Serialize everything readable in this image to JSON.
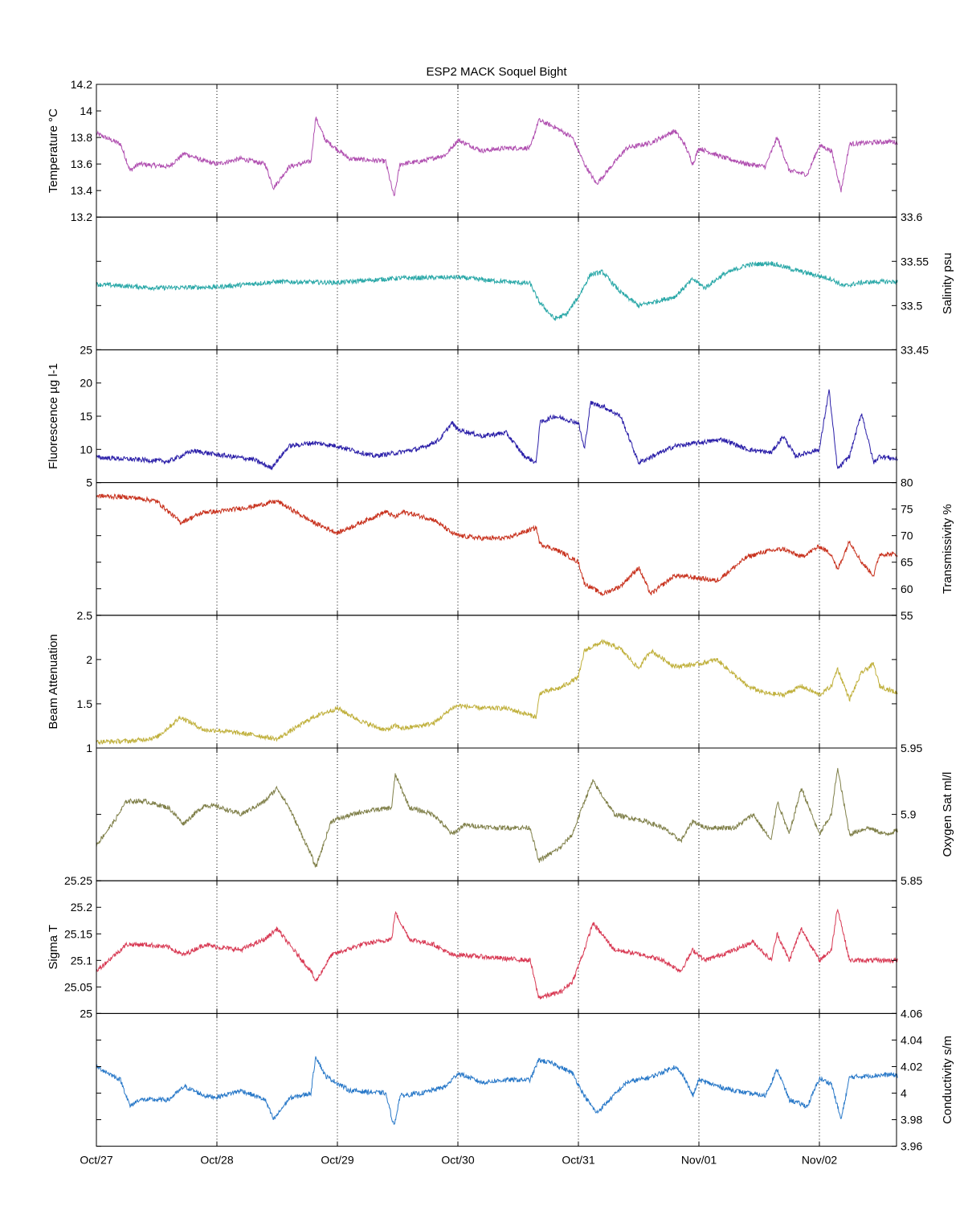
{
  "chart_data": {
    "type": "line",
    "title": "ESP2 MACK  Soquel Bight",
    "x_ticks": [
      "Oct/27",
      "Oct/28",
      "Oct/29",
      "Oct/30",
      "Oct/31",
      "Nov/01",
      "Nov/02"
    ],
    "x_range_days": [
      0,
      6.65
    ],
    "grid": "vertical dotted at day ticks",
    "panels": [
      {
        "name": "Temperature",
        "ylabel": "Temperature °C",
        "side": "left",
        "color": "#b04fb0",
        "ylim": [
          13.2,
          14.2
        ],
        "yticks": [
          13.4,
          13.6,
          13.8,
          14,
          14.2
        ],
        "ytick_labels": [
          "13.4",
          "13.6",
          "13.8",
          "14",
          "14.2"
        ],
        "bottom_label": "13.2",
        "x": [
          0,
          0.2,
          0.28,
          0.35,
          0.6,
          0.73,
          0.9,
          1.0,
          1.2,
          1.4,
          1.47,
          1.6,
          1.78,
          1.82,
          1.9,
          2.1,
          2.4,
          2.47,
          2.52,
          2.7,
          2.9,
          3.0,
          3.2,
          3.4,
          3.6,
          3.67,
          3.8,
          3.95,
          4.05,
          4.15,
          4.4,
          4.6,
          4.8,
          4.88,
          4.95,
          5.0,
          5.2,
          5.4,
          5.55,
          5.65,
          5.75,
          5.9,
          6.0,
          6.1,
          6.18,
          6.25,
          6.4,
          6.6,
          6.65
        ],
        "y": [
          13.83,
          13.75,
          13.55,
          13.6,
          13.58,
          13.68,
          13.62,
          13.6,
          13.64,
          13.6,
          13.42,
          13.58,
          13.62,
          13.95,
          13.78,
          13.64,
          13.62,
          13.35,
          13.6,
          13.62,
          13.67,
          13.78,
          13.7,
          13.72,
          13.72,
          13.93,
          13.88,
          13.8,
          13.6,
          13.45,
          13.72,
          13.76,
          13.85,
          13.75,
          13.6,
          13.72,
          13.65,
          13.6,
          13.58,
          13.8,
          13.55,
          13.52,
          13.74,
          13.7,
          13.4,
          13.75,
          13.76,
          13.77,
          13.76
        ]
      },
      {
        "name": "Salinity",
        "ylabel": "Salinity psu",
        "side": "right",
        "color": "#2aa8a8",
        "ylim": [
          33.45,
          33.6
        ],
        "yticks": [
          33.45,
          33.5,
          33.55,
          33.6
        ],
        "ytick_labels": [
          "33.45",
          "33.5",
          "33.55",
          "33.6"
        ],
        "x": [
          0,
          0.5,
          1.0,
          1.5,
          2.0,
          2.5,
          3.0,
          3.3,
          3.6,
          3.67,
          3.8,
          3.9,
          4.0,
          4.1,
          4.2,
          4.35,
          4.5,
          4.8,
          4.95,
          5.05,
          5.2,
          5.4,
          5.6,
          5.8,
          5.95,
          6.1,
          6.2,
          6.35,
          6.5,
          6.65
        ],
        "y": [
          33.524,
          33.52,
          33.521,
          33.527,
          33.526,
          33.531,
          33.532,
          33.528,
          33.525,
          33.505,
          33.485,
          33.49,
          33.51,
          33.535,
          33.538,
          33.515,
          33.5,
          33.51,
          33.53,
          33.52,
          33.535,
          33.546,
          33.548,
          33.54,
          33.535,
          33.53,
          33.522,
          33.526,
          33.527,
          33.527
        ]
      },
      {
        "name": "Fluorescence",
        "ylabel": "Fluorescence µg l-1",
        "side": "left",
        "color": "#2a1ea8",
        "ylim": [
          5,
          25
        ],
        "yticks": [
          5,
          10,
          15,
          20,
          25
        ],
        "ytick_labels": [
          "5",
          "10",
          "15",
          "20",
          "25"
        ],
        "x": [
          0,
          0.3,
          0.6,
          0.8,
          1.0,
          1.3,
          1.45,
          1.6,
          1.8,
          2.0,
          2.3,
          2.5,
          2.7,
          2.85,
          2.95,
          3.0,
          3.2,
          3.4,
          3.55,
          3.65,
          3.68,
          3.8,
          4.0,
          4.05,
          4.1,
          4.2,
          4.35,
          4.5,
          4.8,
          5.0,
          5.2,
          5.4,
          5.6,
          5.7,
          5.8,
          6.0,
          6.08,
          6.15,
          6.25,
          6.35,
          6.45,
          6.5,
          6.65
        ],
        "y": [
          8.8,
          8.5,
          8.2,
          9.8,
          9.2,
          8.5,
          7.2,
          10.5,
          11.0,
          10.5,
          9.0,
          9.5,
          10.2,
          11.5,
          14.0,
          13.0,
          12.0,
          12.5,
          9.0,
          8.0,
          14.0,
          15.0,
          14.0,
          10.0,
          17.0,
          16.5,
          15.0,
          8.0,
          10.5,
          11.0,
          11.5,
          10.0,
          9.5,
          12.0,
          9.0,
          10.0,
          19.0,
          7.0,
          9.0,
          15.5,
          8.0,
          9.0,
          8.5
        ]
      },
      {
        "name": "Transmissivity",
        "ylabel": "Transmissivity %",
        "side": "right",
        "color": "#c8321e",
        "ylim": [
          55,
          80
        ],
        "yticks": [
          55,
          60,
          65,
          70,
          75,
          80
        ],
        "ytick_labels": [
          "55",
          "60",
          "65",
          "70",
          "75",
          "80"
        ],
        "x": [
          0,
          0.3,
          0.5,
          0.7,
          0.9,
          1.0,
          1.3,
          1.5,
          1.8,
          2.0,
          2.2,
          2.4,
          2.48,
          2.55,
          2.8,
          2.95,
          3.0,
          3.2,
          3.4,
          3.65,
          3.68,
          3.85,
          4.0,
          4.05,
          4.2,
          4.35,
          4.5,
          4.6,
          4.8,
          5.0,
          5.15,
          5.4,
          5.55,
          5.7,
          5.85,
          6.0,
          6.1,
          6.15,
          6.25,
          6.35,
          6.45,
          6.5,
          6.65
        ],
        "y": [
          77.5,
          77.2,
          76.5,
          72.5,
          74.5,
          74.5,
          75.5,
          76.5,
          72.5,
          70.5,
          72.5,
          74.5,
          73.5,
          74.5,
          73.0,
          70.5,
          70.0,
          69.5,
          69.5,
          71.5,
          68.5,
          67.0,
          65.0,
          61.0,
          59.0,
          60.5,
          64.0,
          59.0,
          62.5,
          62.0,
          61.5,
          66.0,
          67.0,
          67.5,
          66.0,
          68.0,
          66.5,
          63.5,
          69.0,
          65.0,
          62.5,
          66.5,
          66.5
        ]
      },
      {
        "name": "Beam Attenuation",
        "ylabel": "Beam Attenuation",
        "side": "left",
        "color": "#c0b03c",
        "ylim": [
          1,
          2.5
        ],
        "yticks": [
          1,
          1.5,
          2,
          2.5
        ],
        "ytick_labels": [
          "1",
          "1.5",
          "2",
          "2.5"
        ],
        "x": [
          0,
          0.3,
          0.5,
          0.7,
          0.9,
          1.0,
          1.3,
          1.5,
          1.8,
          2.0,
          2.2,
          2.4,
          2.48,
          2.55,
          2.8,
          2.95,
          3.0,
          3.2,
          3.4,
          3.65,
          3.68,
          3.85,
          4.0,
          4.05,
          4.2,
          4.35,
          4.5,
          4.6,
          4.8,
          5.0,
          5.15,
          5.4,
          5.55,
          5.7,
          5.85,
          6.0,
          6.1,
          6.15,
          6.25,
          6.35,
          6.45,
          6.5,
          6.65
        ],
        "y": [
          1.07,
          1.08,
          1.12,
          1.35,
          1.2,
          1.2,
          1.15,
          1.1,
          1.35,
          1.45,
          1.3,
          1.2,
          1.25,
          1.22,
          1.28,
          1.45,
          1.48,
          1.45,
          1.45,
          1.35,
          1.62,
          1.68,
          1.8,
          2.1,
          2.2,
          2.12,
          1.9,
          2.1,
          1.92,
          1.95,
          2.0,
          1.7,
          1.62,
          1.6,
          1.7,
          1.6,
          1.7,
          1.9,
          1.55,
          1.85,
          1.95,
          1.7,
          1.62
        ]
      },
      {
        "name": "Oxygen Sat",
        "ylabel": "Oxygen Sat ml/l",
        "side": "right",
        "color": "#80804a",
        "ylim": [
          5.85,
          5.95
        ],
        "yticks": [
          5.85,
          5.9,
          5.95
        ],
        "ytick_labels": [
          "5.85",
          "5.9",
          "5.95"
        ],
        "x": [
          0,
          0.15,
          0.25,
          0.4,
          0.6,
          0.72,
          0.9,
          1.0,
          1.2,
          1.4,
          1.5,
          1.6,
          1.78,
          1.82,
          1.95,
          2.2,
          2.45,
          2.48,
          2.6,
          2.8,
          2.95,
          3.05,
          3.3,
          3.6,
          3.67,
          3.85,
          3.95,
          4.05,
          4.12,
          4.3,
          4.55,
          4.7,
          4.85,
          4.95,
          5.05,
          5.3,
          5.45,
          5.6,
          5.65,
          5.75,
          5.85,
          6.0,
          6.1,
          6.15,
          6.25,
          6.4,
          6.55,
          6.65
        ],
        "y": [
          5.877,
          5.895,
          5.91,
          5.91,
          5.905,
          5.893,
          5.907,
          5.906,
          5.9,
          5.91,
          5.92,
          5.905,
          5.87,
          5.86,
          5.895,
          5.902,
          5.905,
          5.93,
          5.905,
          5.9,
          5.885,
          5.892,
          5.89,
          5.89,
          5.865,
          5.875,
          5.885,
          5.91,
          5.925,
          5.9,
          5.895,
          5.89,
          5.88,
          5.895,
          5.89,
          5.89,
          5.9,
          5.88,
          5.91,
          5.885,
          5.92,
          5.885,
          5.9,
          5.935,
          5.885,
          5.89,
          5.885,
          5.888
        ]
      },
      {
        "name": "Sigma T",
        "ylabel": "Sigma T",
        "side": "left",
        "color": "#d83a54",
        "ylim": [
          25,
          25.25
        ],
        "yticks": [
          25,
          25.05,
          25.1,
          25.15,
          25.2,
          25.25
        ],
        "ytick_labels": [
          "25",
          "25.05",
          "25.1",
          "25.15",
          "25.2",
          "25.25"
        ],
        "x": [
          0,
          0.15,
          0.25,
          0.4,
          0.6,
          0.72,
          0.9,
          1.0,
          1.2,
          1.4,
          1.5,
          1.6,
          1.78,
          1.82,
          1.95,
          2.2,
          2.45,
          2.48,
          2.6,
          2.8,
          2.95,
          3.05,
          3.3,
          3.6,
          3.67,
          3.85,
          3.95,
          4.05,
          4.12,
          4.3,
          4.55,
          4.7,
          4.85,
          4.95,
          5.05,
          5.3,
          5.45,
          5.6,
          5.65,
          5.75,
          5.85,
          6.0,
          6.1,
          6.15,
          6.25,
          6.4,
          6.55,
          6.65
        ],
        "y": [
          25.08,
          25.11,
          25.13,
          25.13,
          25.125,
          25.11,
          25.13,
          25.125,
          25.12,
          25.14,
          25.16,
          25.13,
          25.08,
          25.06,
          25.11,
          25.13,
          25.14,
          25.19,
          25.14,
          25.13,
          25.11,
          25.11,
          25.105,
          25.1,
          25.03,
          25.04,
          25.06,
          25.12,
          25.17,
          25.12,
          25.11,
          25.1,
          25.08,
          25.12,
          25.1,
          25.12,
          25.135,
          25.1,
          25.15,
          25.1,
          25.16,
          25.1,
          25.12,
          25.2,
          25.1,
          25.1,
          25.1,
          25.1
        ]
      },
      {
        "name": "Conductivity",
        "ylabel": "Conductivity s/m",
        "side": "right",
        "color": "#2878c8",
        "ylim": [
          3.96,
          4.06
        ],
        "yticks": [
          3.96,
          3.98,
          4,
          4.02,
          4.04,
          4.06
        ],
        "ytick_labels": [
          "3.96",
          "3.98",
          "4",
          "4.02",
          "4.04",
          "4.06"
        ],
        "x": [
          0,
          0.2,
          0.28,
          0.35,
          0.6,
          0.73,
          0.9,
          1.0,
          1.2,
          1.4,
          1.47,
          1.6,
          1.78,
          1.82,
          1.9,
          2.1,
          2.4,
          2.47,
          2.52,
          2.7,
          2.9,
          3.0,
          3.2,
          3.4,
          3.6,
          3.67,
          3.8,
          3.95,
          4.05,
          4.15,
          4.4,
          4.6,
          4.8,
          4.88,
          4.95,
          5.0,
          5.2,
          5.4,
          5.55,
          5.65,
          5.75,
          5.9,
          6.0,
          6.1,
          6.18,
          6.25,
          6.4,
          6.6,
          6.65
        ],
        "y": [
          4.02,
          4.01,
          3.99,
          3.995,
          3.995,
          4.005,
          3.998,
          3.997,
          4.002,
          3.995,
          3.98,
          3.996,
          4.0,
          4.028,
          4.013,
          4.002,
          4.0,
          3.975,
          3.998,
          4.0,
          4.005,
          4.015,
          4.008,
          4.01,
          4.01,
          4.025,
          4.022,
          4.015,
          3.998,
          3.985,
          4.008,
          4.012,
          4.02,
          4.012,
          3.998,
          4.01,
          4.004,
          4.0,
          3.998,
          4.018,
          3.995,
          3.99,
          4.011,
          4.007,
          3.98,
          4.012,
          4.013,
          4.014,
          4.013
        ]
      }
    ]
  }
}
